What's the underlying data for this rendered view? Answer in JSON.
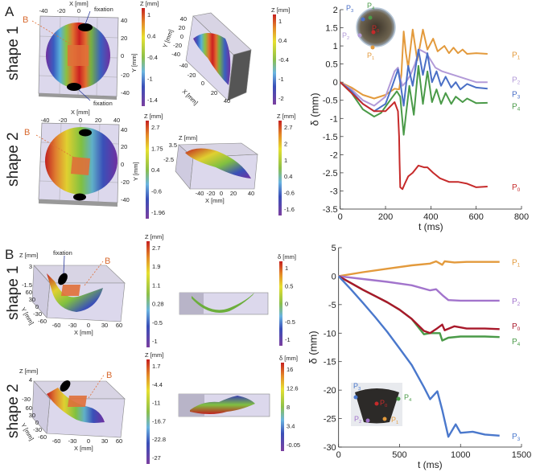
{
  "panel_labels": {
    "a": "A",
    "b": "B"
  },
  "row_labels": {
    "a1": "shape 1",
    "a2": "shape 2",
    "b1": "shape 1",
    "b2": "shape 2"
  },
  "annotations": {
    "fixation": "fixation",
    "b_vector": "B"
  },
  "plots3d": {
    "x_label": "X [mm]",
    "y_label": "Y [mm]",
    "z_label": "Z [mm]",
    "a1": {
      "x_ticks": [
        "-40",
        "-20",
        "0"
      ],
      "y_ticks": [
        "40",
        "20",
        "0",
        "-20",
        "-40"
      ]
    },
    "a2": {
      "x_ticks": [
        "-40",
        "-20",
        "0",
        "20",
        "40"
      ],
      "y_ticks": [
        "40",
        "20",
        "0",
        "-20",
        "-40"
      ]
    },
    "a3": {
      "x_ticks": [
        "-40",
        "-20",
        "0",
        "20",
        "40"
      ],
      "y_ticks": [
        "40",
        "20",
        "0",
        "-20",
        "-40"
      ]
    },
    "a4": {
      "x_ticks": [
        "-40",
        "-20",
        "0",
        "20",
        "40"
      ],
      "z_ticks": [
        "3.5",
        "-2.5"
      ]
    },
    "b1": {
      "x_ticks": [
        "-60",
        "-30",
        "0",
        "30",
        "60"
      ],
      "y_ticks": [
        "60",
        "30",
        "0",
        "-30",
        "-60"
      ],
      "z_ticks": [
        "3",
        "-1.5"
      ]
    },
    "b3": {
      "x_ticks": [
        "-60",
        "-30",
        "0",
        "30",
        "60"
      ],
      "y_ticks": [
        "60",
        "30",
        "0",
        "-30",
        "-60"
      ],
      "z_ticks": [
        "4",
        "-30"
      ]
    }
  },
  "colorbars": [
    {
      "title": "Z [mm]",
      "ticks": [
        "1",
        "0.4",
        "-0.4",
        "-1",
        "-1.4"
      ]
    },
    {
      "title": "Z [mm]",
      "ticks": [
        "1",
        "0.4",
        "-0.4",
        "-1",
        "-2"
      ]
    },
    {
      "title": "Z [mm]",
      "ticks": [
        "2.7",
        "1.75",
        "0.4",
        "-0.6",
        "-1.96"
      ]
    },
    {
      "title": "Z [mm]",
      "ticks": [
        "2.7",
        "2",
        "1",
        "0.4",
        "-0.6",
        "-1.6"
      ]
    },
    {
      "title": "Z [mm]",
      "ticks": [
        "2.7",
        "1.9",
        "1.1",
        "0.28",
        "-0.5",
        "-1"
      ]
    },
    {
      "title": "δ [mm]",
      "ticks": [
        "1",
        "0.5",
        "0",
        "-0.5",
        "-1"
      ]
    },
    {
      "title": "Z [mm]",
      "ticks": [
        "1.7",
        "-4.4",
        "-11",
        "-16.7",
        "-22.8",
        "-27"
      ]
    },
    {
      "title": "δ [mm]",
      "ticks": [
        "16",
        "12.6",
        "8",
        "3.4",
        "-0.05"
      ]
    }
  ],
  "insets": {
    "a": [
      "P3",
      "P4",
      "P0",
      "P2",
      "P1"
    ],
    "b": [
      "P3",
      "P4",
      "P0",
      "P2",
      "P1"
    ]
  },
  "chart_data": [
    {
      "type": "line",
      "xlabel": "t (ms)",
      "ylabel": "δ (mm)",
      "xlim": [
        0,
        800
      ],
      "ylim": [
        -3.5,
        2
      ],
      "x_ticks": [
        0,
        200,
        400,
        600,
        800
      ],
      "y_ticks": [
        2,
        1.5,
        1,
        0.5,
        0,
        -0.5,
        -1,
        -1.5,
        -2,
        -2.5,
        -3,
        -3.5
      ],
      "grid": false,
      "series": [
        {
          "name": "P1",
          "color": "#e39a3c",
          "points": [
            [
              0,
              0
            ],
            [
              50,
              -0.15
            ],
            [
              100,
              -0.35
            ],
            [
              150,
              -0.45
            ],
            [
              200,
              -0.35
            ],
            [
              240,
              -0.18
            ],
            [
              260,
              -0.2
            ],
            [
              270,
              0.2
            ],
            [
              280,
              1.4
            ],
            [
              290,
              0.8
            ],
            [
              300,
              0.4
            ],
            [
              320,
              1.45
            ],
            [
              340,
              0.6
            ],
            [
              365,
              1.45
            ],
            [
              385,
              0.9
            ],
            [
              410,
              1.2
            ],
            [
              430,
              0.85
            ],
            [
              460,
              1.0
            ],
            [
              480,
              0.8
            ],
            [
              500,
              0.95
            ],
            [
              520,
              0.8
            ],
            [
              540,
              0.9
            ],
            [
              560,
              0.78
            ],
            [
              600,
              0.8
            ],
            [
              650,
              0.78
            ]
          ]
        },
        {
          "name": "P2",
          "color": "#b29ad8",
          "points": [
            [
              0,
              0
            ],
            [
              50,
              -0.2
            ],
            [
              100,
              -0.5
            ],
            [
              150,
              -0.65
            ],
            [
              200,
              -0.4
            ],
            [
              240,
              0.3
            ],
            [
              255,
              0.4
            ],
            [
              265,
              0.1
            ],
            [
              275,
              -0.1
            ],
            [
              290,
              0.0
            ],
            [
              310,
              0.2
            ],
            [
              330,
              0.5
            ],
            [
              350,
              0.9
            ],
            [
              380,
              0.8
            ],
            [
              400,
              0.6
            ],
            [
              420,
              0.4
            ],
            [
              450,
              0.3
            ],
            [
              500,
              0.2
            ],
            [
              550,
              0.1
            ],
            [
              600,
              0.0
            ],
            [
              650,
              0.0
            ]
          ]
        },
        {
          "name": "P3",
          "color": "#4a6fc6",
          "points": [
            [
              0,
              0
            ],
            [
              50,
              -0.25
            ],
            [
              100,
              -0.6
            ],
            [
              150,
              -0.8
            ],
            [
              200,
              -0.6
            ],
            [
              230,
              -0.1
            ],
            [
              255,
              0.35
            ],
            [
              265,
              0.0
            ],
            [
              280,
              -0.65
            ],
            [
              300,
              0.45
            ],
            [
              320,
              -0.1
            ],
            [
              345,
              0.9
            ],
            [
              365,
              0.2
            ],
            [
              385,
              0.8
            ],
            [
              405,
              0.0
            ],
            [
              425,
              0.3
            ],
            [
              445,
              -0.1
            ],
            [
              465,
              0.15
            ],
            [
              490,
              -0.15
            ],
            [
              510,
              0.0
            ],
            [
              530,
              -0.2
            ],
            [
              560,
              -0.05
            ],
            [
              600,
              -0.15
            ],
            [
              650,
              -0.18
            ]
          ]
        },
        {
          "name": "P4",
          "color": "#4a9a48",
          "points": [
            [
              0,
              0
            ],
            [
              50,
              -0.3
            ],
            [
              100,
              -0.75
            ],
            [
              150,
              -0.95
            ],
            [
              180,
              -0.85
            ],
            [
              220,
              -0.5
            ],
            [
              250,
              -0.25
            ],
            [
              265,
              -0.4
            ],
            [
              280,
              -1.45
            ],
            [
              290,
              -0.9
            ],
            [
              305,
              -0.1
            ],
            [
              325,
              -0.9
            ],
            [
              345,
              0.45
            ],
            [
              365,
              -0.6
            ],
            [
              385,
              0.3
            ],
            [
              405,
              -0.55
            ],
            [
              425,
              -0.2
            ],
            [
              445,
              -0.6
            ],
            [
              465,
              -0.3
            ],
            [
              490,
              -0.6
            ],
            [
              510,
              -0.4
            ],
            [
              540,
              -0.55
            ],
            [
              560,
              -0.45
            ],
            [
              600,
              -0.58
            ],
            [
              650,
              -0.57
            ]
          ]
        },
        {
          "name": "P0",
          "color": "#c62a2a",
          "points": [
            [
              0,
              0
            ],
            [
              50,
              -0.3
            ],
            [
              100,
              -0.6
            ],
            [
              150,
              -0.8
            ],
            [
              200,
              -0.8
            ],
            [
              240,
              -0.55
            ],
            [
              255,
              -0.8
            ],
            [
              260,
              -1.5
            ],
            [
              262,
              -2.2
            ],
            [
              265,
              -2.9
            ],
            [
              275,
              -2.95
            ],
            [
              285,
              -2.8
            ],
            [
              300,
              -2.6
            ],
            [
              320,
              -2.5
            ],
            [
              345,
              -2.3
            ],
            [
              370,
              -2.35
            ],
            [
              385,
              -2.35
            ],
            [
              410,
              -2.5
            ],
            [
              440,
              -2.65
            ],
            [
              480,
              -2.75
            ],
            [
              520,
              -2.75
            ],
            [
              560,
              -2.8
            ],
            [
              600,
              -2.9
            ],
            [
              650,
              -2.88
            ]
          ]
        }
      ]
    },
    {
      "type": "line",
      "xlabel": "t (ms)",
      "ylabel": "δ (mm)",
      "xlim": [
        0,
        1500
      ],
      "ylim": [
        -30,
        5
      ],
      "x_ticks": [
        0,
        500,
        1000,
        1500
      ],
      "y_ticks": [
        5,
        0,
        -5,
        -10,
        -15,
        -20,
        -25,
        -30
      ],
      "grid": false,
      "series": [
        {
          "name": "P1",
          "color": "#e39a3c",
          "points": [
            [
              0,
              0
            ],
            [
              200,
              0.7
            ],
            [
              400,
              1.3
            ],
            [
              600,
              1.9
            ],
            [
              750,
              2.2
            ],
            [
              800,
              2.6
            ],
            [
              850,
              2.0
            ],
            [
              870,
              2.6
            ],
            [
              950,
              2.4
            ],
            [
              1050,
              2.5
            ],
            [
              1200,
              2.5
            ],
            [
              1320,
              2.5
            ]
          ]
        },
        {
          "name": "P2",
          "color": "#a274cc",
          "points": [
            [
              0,
              0
            ],
            [
              200,
              -0.5
            ],
            [
              400,
              -1.0
            ],
            [
              600,
              -1.6
            ],
            [
              750,
              -2.5
            ],
            [
              800,
              -2.3
            ],
            [
              860,
              -3.5
            ],
            [
              900,
              -4.2
            ],
            [
              1000,
              -4.3
            ],
            [
              1200,
              -4.3
            ],
            [
              1320,
              -4.3
            ]
          ]
        },
        {
          "name": "P4",
          "color": "#4a9a48",
          "points": [
            [
              0,
              0
            ],
            [
              100,
              -1.2
            ],
            [
              200,
              -2.4
            ],
            [
              300,
              -3.5
            ],
            [
              400,
              -4.6
            ],
            [
              500,
              -5.9
            ],
            [
              600,
              -7.5
            ],
            [
              700,
              -10.2
            ],
            [
              750,
              -10.0
            ],
            [
              830,
              -10.0
            ],
            [
              850,
              -11.3
            ],
            [
              900,
              -10.8
            ],
            [
              1000,
              -10.6
            ],
            [
              1200,
              -10.6
            ],
            [
              1320,
              -10.7
            ]
          ]
        },
        {
          "name": "P0",
          "color": "#a8182a",
          "points": [
            [
              0,
              0
            ],
            [
              100,
              -1.2
            ],
            [
              200,
              -2.4
            ],
            [
              300,
              -3.5
            ],
            [
              400,
              -4.6
            ],
            [
              500,
              -5.9
            ],
            [
              600,
              -7.5
            ],
            [
              700,
              -9.6
            ],
            [
              750,
              -10.0
            ],
            [
              800,
              -9.3
            ],
            [
              850,
              -8.5
            ],
            [
              870,
              -9.5
            ],
            [
              950,
              -8.8
            ],
            [
              1050,
              -9.2
            ],
            [
              1200,
              -9.2
            ],
            [
              1320,
              -9.3
            ]
          ]
        },
        {
          "name": "P3",
          "color": "#4a78cc",
          "points": [
            [
              0,
              0
            ],
            [
              100,
              -2.3
            ],
            [
              200,
              -4.7
            ],
            [
              300,
              -7.2
            ],
            [
              400,
              -9.8
            ],
            [
              500,
              -12.7
            ],
            [
              600,
              -15.6
            ],
            [
              700,
              -19.5
            ],
            [
              750,
              -21.6
            ],
            [
              810,
              -20.2
            ],
            [
              850,
              -23.5
            ],
            [
              900,
              -28.2
            ],
            [
              960,
              -26.0
            ],
            [
              1000,
              -27.5
            ],
            [
              1100,
              -27.3
            ],
            [
              1200,
              -27.8
            ],
            [
              1320,
              -28.0
            ]
          ]
        }
      ]
    }
  ]
}
